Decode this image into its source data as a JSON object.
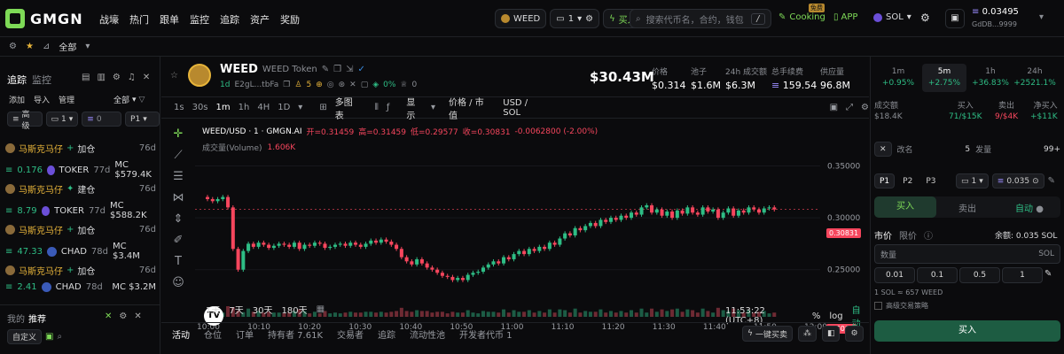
{
  "brand": {
    "name": "GMGN"
  },
  "nav": [
    "战壕",
    "热门",
    "跟单",
    "监控",
    "追踪",
    "资产",
    "奖励"
  ],
  "top": {
    "token_pill": "WEED",
    "wallet_count": "1",
    "buy_label": "买入",
    "search_placeholder": "搜索代币名，合约，钱包",
    "search_key": "/",
    "cooking": "Cooking",
    "cooking_badge": "免费",
    "app": "APP",
    "chain": "SOL",
    "balance": "0.03495",
    "wallet_addr": "GdDB...9999"
  },
  "subbar": {
    "all": "全部"
  },
  "left": {
    "tabs": [
      "追踪",
      "监控"
    ],
    "actions": [
      "添加",
      "导入",
      "管理"
    ],
    "all": "全部",
    "filters": {
      "level": "高级",
      "count": "1",
      "amount": "0",
      "preset": "P1"
    },
    "trades": [
      {
        "name": "马斯克马仔",
        "action": "加仓",
        "age": "76d",
        "amount": "0.176",
        "token": "TOKER",
        "tage": "77d",
        "mc": "MC $579.4K"
      },
      {
        "name": "马斯克马仔",
        "action": "建仓",
        "age": "76d",
        "amount": "8.79",
        "token": "TOKER",
        "tage": "77d",
        "mc": "MC $588.2K"
      },
      {
        "name": "马斯克马仔",
        "action": "加仓",
        "age": "76d",
        "amount": "47.33",
        "token": "CHAD",
        "tage": "78d",
        "mc": "MC $3.4M"
      },
      {
        "name": "马斯克马仔",
        "action": "加仓",
        "age": "76d",
        "amount": "2.41",
        "token": "CHAD",
        "tage": "78d",
        "mc": "MC $3.2M"
      }
    ],
    "rec": {
      "my": "我的",
      "rec": "推荐",
      "custom": "自定义"
    }
  },
  "token": {
    "symbol": "WEED",
    "name": "WEED Token",
    "age": "1d",
    "ca": "E2gL...tbFa",
    "holders_icon": "5",
    "pct": "0%",
    "price_usd": "$30.43M",
    "stats": [
      {
        "label": "价格",
        "value": "$0.314"
      },
      {
        "label": "池子",
        "value": "$1.6M"
      },
      {
        "label": "24h 成交额",
        "value": "$6.3M"
      },
      {
        "label": "总手续费",
        "value": "159.54"
      },
      {
        "label": "供应量",
        "value": "96.8M"
      }
    ]
  },
  "chart_tool": {
    "intervals": [
      "1s",
      "30s",
      "1m",
      "1h",
      "4H",
      "1D"
    ],
    "active": "1m",
    "indicators": "多图表",
    "display": "显示",
    "price_mc": "价格 / 市值",
    "unit": "USD / SOL"
  },
  "chart_data": {
    "type": "candlestick",
    "title": "WEED/USD · 1 · GMGN.AI",
    "ohlc": {
      "open": "开=0.31459",
      "high": "高=0.31459",
      "low": "低=0.29577",
      "close": "收=0.30831",
      "change": "-0.0062800 (-2.00%)"
    },
    "volume_label": "成交量(Volume)",
    "volume_value": "1.606K",
    "y_ticks": [
      "0.35000",
      "0.30000",
      "0.25000"
    ],
    "y_range": [
      0.225,
      0.37
    ],
    "x_ticks": [
      "10:00",
      "10:10",
      "10:20",
      "10:30",
      "10:40",
      "10:50",
      "11:00",
      "11:10",
      "11:20",
      "11:30",
      "11:40",
      "11:50",
      "12:00"
    ],
    "last_price": "0.30831",
    "last_volume": "1.606K",
    "closes": [
      0.318,
      0.316,
      0.318,
      0.32,
      0.31,
      0.27,
      0.25,
      0.268,
      0.275,
      0.272,
      0.276,
      0.274,
      0.271,
      0.273,
      0.275,
      0.274,
      0.272,
      0.276,
      0.27,
      0.274,
      0.273,
      0.276,
      0.275,
      0.271,
      0.272,
      0.274,
      0.275,
      0.273,
      0.276,
      0.274,
      0.272,
      0.275,
      0.278,
      0.276,
      0.279,
      0.277,
      0.274,
      0.27,
      0.262,
      0.258,
      0.255,
      0.26,
      0.256,
      0.252,
      0.25,
      0.247,
      0.244,
      0.243,
      0.24,
      0.242,
      0.24,
      0.245,
      0.247,
      0.248,
      0.252,
      0.255,
      0.258,
      0.256,
      0.262,
      0.26,
      0.265,
      0.268,
      0.265,
      0.27,
      0.268,
      0.272,
      0.27,
      0.276,
      0.274,
      0.28,
      0.285,
      0.283,
      0.29,
      0.288,
      0.292,
      0.295,
      0.292,
      0.298,
      0.296,
      0.3,
      0.298,
      0.302,
      0.3,
      0.305,
      0.303,
      0.31,
      0.312,
      0.305,
      0.308,
      0.302,
      0.306,
      0.3,
      0.307,
      0.304,
      0.31,
      0.305,
      0.303,
      0.31,
      0.306,
      0.308,
      0.3,
      0.305,
      0.309,
      0.302,
      0.307,
      0.305,
      0.31,
      0.308,
      0.305,
      0.309,
      0.31,
      0.308
    ],
    "ranges": [
      "1天",
      "7天",
      "30天",
      "180天"
    ],
    "clock": "11:53:22 (UTC+8)",
    "pct": "%",
    "log": "log",
    "auto": "自动"
  },
  "bottom_tabs": [
    "活动",
    "仓位",
    "订单",
    "持有者 7.61K",
    "交易者",
    "追踪",
    "流动性池",
    "开发者代币 1"
  ],
  "quick_buy": "一键买卖",
  "right": {
    "tfs": [
      {
        "t": "1m",
        "v": "+0.95%"
      },
      {
        "t": "5m",
        "v": "+2.75%"
      },
      {
        "t": "1h",
        "v": "+36.83%"
      },
      {
        "t": "24h",
        "v": "+2521.1%"
      }
    ],
    "stats": [
      {
        "label": "成交额",
        "value": "$18.4K"
      },
      {
        "label": "买入",
        "value": "71/$15K"
      },
      {
        "label": "卖出",
        "value": "9/$4K"
      },
      {
        "label": "净买入",
        "value": "+$11K"
      }
    ],
    "rename": "改名",
    "fa": "发量",
    "rename_n": "5",
    "rename_max": "99+",
    "presets": [
      "P1",
      "P2",
      "P3"
    ],
    "preset_count": "1",
    "preset_amt": "0.035",
    "buy": "买入",
    "sell": "卖出",
    "auto": "自动",
    "market": "市价",
    "limit": "限价",
    "balance": "余额: 0.035 SOL",
    "qty": "数量",
    "qty_unit": "SOL",
    "amounts": [
      "0.01",
      "0.1",
      "0.5",
      "1"
    ],
    "rate": "1 SOL ≈ 657 WEED",
    "advanced": "高级交易策略",
    "buy_btn": "买入"
  }
}
